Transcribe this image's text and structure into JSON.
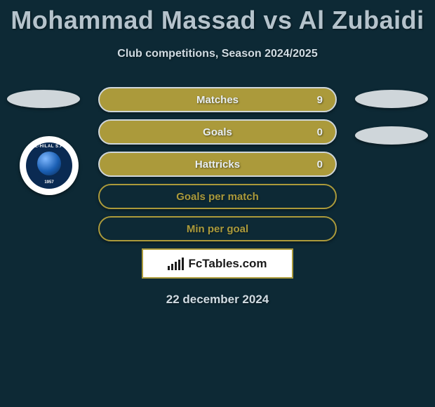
{
  "title": "Mohammad Massad vs Al Zubaidi",
  "subtitle": "Club competitions, Season 2024/2025",
  "stats": [
    {
      "label": "Matches",
      "value": "9",
      "has_value": true
    },
    {
      "label": "Goals",
      "value": "0",
      "has_value": true
    },
    {
      "label": "Hattricks",
      "value": "0",
      "has_value": true
    },
    {
      "label": "Goals per match",
      "value": null,
      "has_value": false
    },
    {
      "label": "Min per goal",
      "value": null,
      "has_value": false
    }
  ],
  "brand": "FcTables.com",
  "date": "22 december 2024",
  "club_logo": {
    "top_text": "AL-HILAL S.FC",
    "bottom_text": "1957"
  },
  "colors": {
    "background": "#0d2935",
    "pill_fill": "#ab9a3b",
    "pill_border": "#cfd6da",
    "oval": "#cfd6da",
    "text_light": "#d0dbe2",
    "title": "#b5c3cc",
    "logo_shield": "#0a2a52"
  },
  "brand_bars": [
    6,
    9,
    12,
    15,
    18
  ]
}
